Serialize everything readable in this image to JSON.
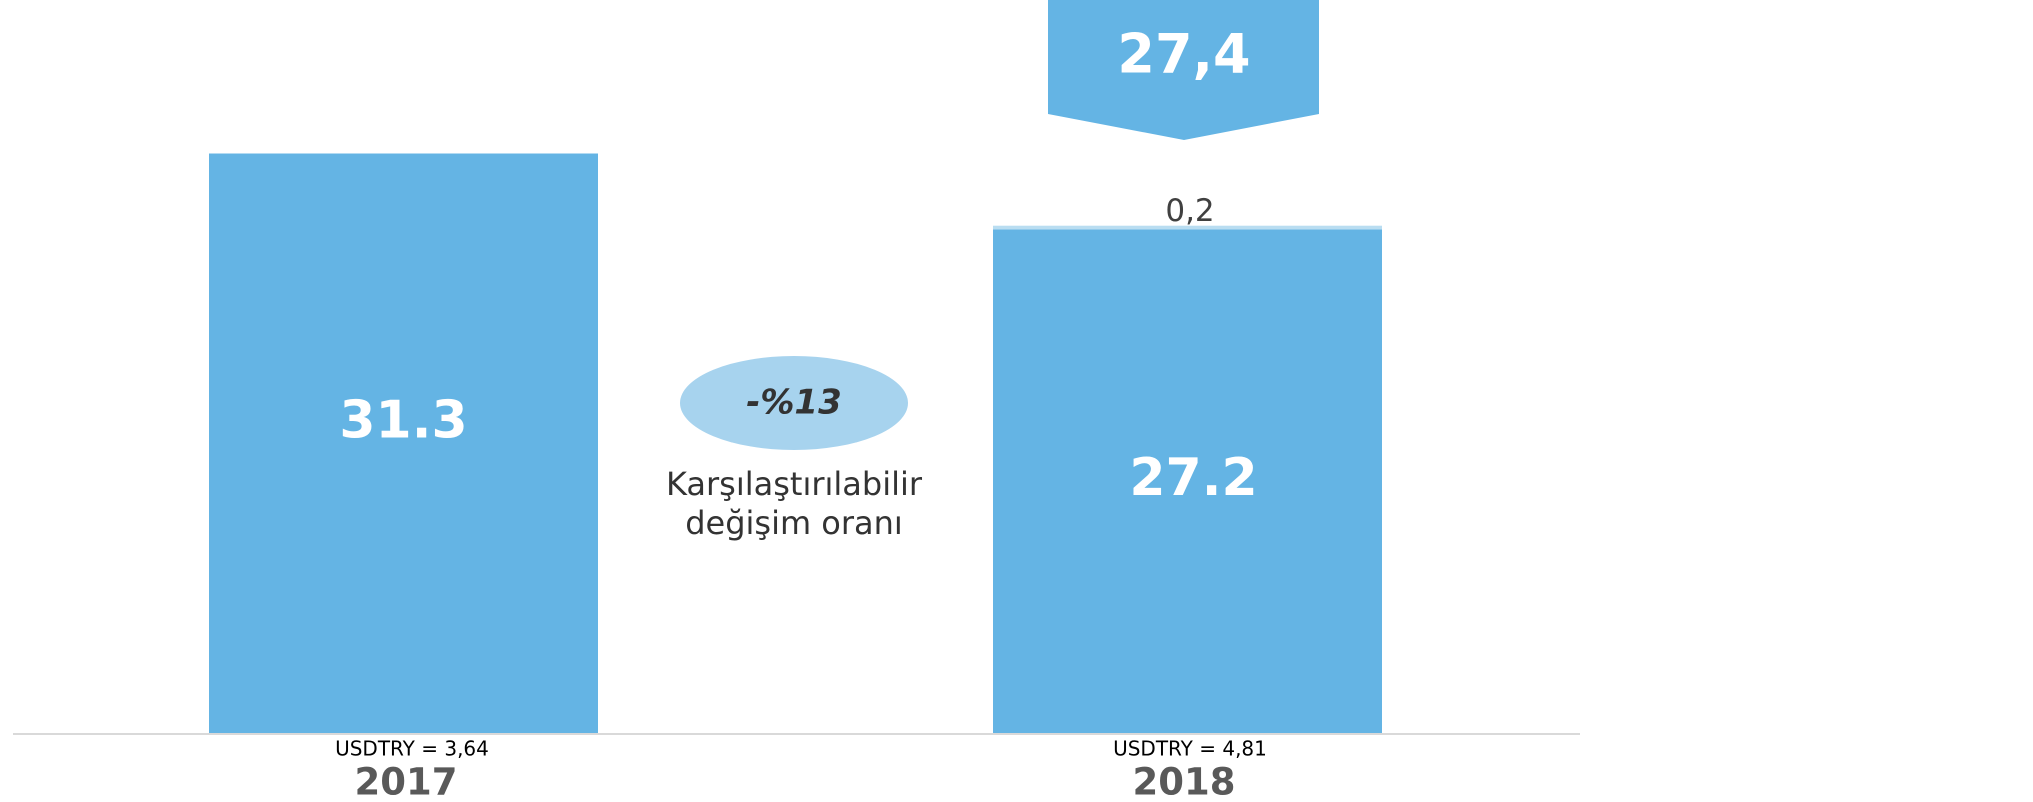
{
  "chart_data": {
    "type": "bar",
    "stacked": true,
    "categories": [
      "2017",
      "2018"
    ],
    "category_notes": [
      "USDTRY = 3,64",
      "USDTRY = 4,81"
    ],
    "series": [
      {
        "color": "#64b4e4",
        "values": [
          31.3,
          27.2
        ]
      },
      {
        "color": "#b9ddf1",
        "values": [
          null,
          0.2
        ],
        "value_labels": [
          null,
          "0,2"
        ]
      }
    ],
    "totals": [
      null,
      {
        "value": 27.4,
        "label": "27,4"
      }
    ],
    "callout_color": "#64b4e4",
    "change": {
      "label": "-%13",
      "color": "#a7d3ee",
      "note_lines": [
        "Karşılaştırılabilir",
        "değişim oranı"
      ]
    },
    "ylim": [
      0,
      35
    ]
  }
}
